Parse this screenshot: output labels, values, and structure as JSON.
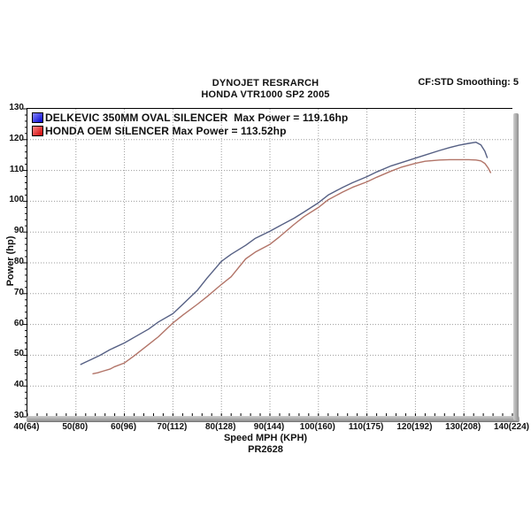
{
  "header": {
    "line1": "DYNOJET RESRARCH",
    "line2": "HONDA VTR1000 SP2 2005",
    "smoothing": "CF:STD Smoothing: 5"
  },
  "footer": {
    "run_id": "PR2628"
  },
  "colors": {
    "grid": "#9c9c9c",
    "axis_bar": "#a8a8a8",
    "tick": "#000000"
  },
  "chart_data": {
    "type": "line",
    "title": "DYNOJET RESRARCH",
    "subtitle": "HONDA VTR1000 SP2 2005",
    "annotation_top_right": "CF:STD Smoothing: 5",
    "xlabel": "Speed MPH (KPH)",
    "ylabel": "Power (hp)",
    "run_id": "PR2628",
    "xlim": [
      40,
      140
    ],
    "ylim": [
      30,
      130
    ],
    "grid": "dotted",
    "legend_position": "top-left",
    "x_ticks": [
      {
        "value": 40,
        "label": "40(64)"
      },
      {
        "value": 50,
        "label": "50(80)"
      },
      {
        "value": 60,
        "label": "60(96)"
      },
      {
        "value": 70,
        "label": "70(112)"
      },
      {
        "value": 80,
        "label": "80(128)"
      },
      {
        "value": 90,
        "label": "90(144)"
      },
      {
        "value": 100,
        "label": "100(160)"
      },
      {
        "value": 110,
        "label": "110(175)"
      },
      {
        "value": 120,
        "label": "120(192)"
      },
      {
        "value": 130,
        "label": "130(208)"
      },
      {
        "value": 140,
        "label": "140(224)"
      }
    ],
    "y_ticks": [
      30,
      40,
      50,
      60,
      70,
      80,
      90,
      100,
      110,
      120,
      130
    ],
    "minor_tick_step_x": 2,
    "minor_tick_step_y": 2,
    "series": [
      {
        "name": "DELKEVIC 350MM OVAL SILENCER",
        "max_power_hp": 119.16,
        "legend_text": "DELKEVIC 350MM OVAL SILENCER  Max Power = 119.16hp",
        "line_color": "#566084",
        "swatch_color_top": "#8888ff",
        "swatch_color_bottom": "#0000cc",
        "points": [
          [
            51,
            47
          ],
          [
            52,
            47.8
          ],
          [
            53,
            48.5
          ],
          [
            55,
            50
          ],
          [
            57,
            51.8
          ],
          [
            60,
            54
          ],
          [
            62,
            55.8
          ],
          [
            65,
            58.5
          ],
          [
            67,
            60.8
          ],
          [
            70,
            63.5
          ],
          [
            72,
            66.5
          ],
          [
            75,
            71
          ],
          [
            77,
            75
          ],
          [
            80,
            80.5
          ],
          [
            82,
            82.8
          ],
          [
            85,
            85.7
          ],
          [
            87,
            88
          ],
          [
            90,
            90.3
          ],
          [
            92,
            92
          ],
          [
            95,
            94.5
          ],
          [
            97,
            96.5
          ],
          [
            100,
            99.5
          ],
          [
            102,
            102
          ],
          [
            105,
            104.5
          ],
          [
            107,
            106
          ],
          [
            110,
            108
          ],
          [
            112,
            109.5
          ],
          [
            115,
            111.5
          ],
          [
            117,
            112.5
          ],
          [
            120,
            114
          ],
          [
            122,
            115
          ],
          [
            125,
            116.5
          ],
          [
            127,
            117.4
          ],
          [
            129,
            118.2
          ],
          [
            131,
            118.8
          ],
          [
            132.5,
            119.16
          ],
          [
            133.5,
            118.3
          ],
          [
            134.3,
            116.3
          ],
          [
            134.8,
            114.2
          ]
        ]
      },
      {
        "name": "HONDA OEM SILENCER",
        "max_power_hp": 113.52,
        "legend_text": "HONDA OEM SILENCER Max Power = 113.52hp",
        "line_color": "#b27468",
        "swatch_color_top": "#ff8888",
        "swatch_color_bottom": "#cc0000",
        "points": [
          [
            53.5,
            44
          ],
          [
            54.5,
            44.3
          ],
          [
            55.5,
            44.8
          ],
          [
            57,
            45.5
          ],
          [
            58,
            46.3
          ],
          [
            60,
            47.5
          ],
          [
            62,
            49.8
          ],
          [
            65,
            53.5
          ],
          [
            67,
            56
          ],
          [
            70,
            60.5
          ],
          [
            72,
            63
          ],
          [
            75,
            66.5
          ],
          [
            77,
            69
          ],
          [
            80,
            73
          ],
          [
            82,
            75.5
          ],
          [
            85,
            81.3
          ],
          [
            87,
            83.5
          ],
          [
            90,
            86
          ],
          [
            92,
            88.5
          ],
          [
            95,
            92.5
          ],
          [
            97,
            95
          ],
          [
            100,
            98
          ],
          [
            102,
            100.5
          ],
          [
            105,
            103
          ],
          [
            107,
            104.5
          ],
          [
            110,
            106.3
          ],
          [
            112,
            107.8
          ],
          [
            115,
            109.8
          ],
          [
            117,
            111
          ],
          [
            120,
            112.3
          ],
          [
            122,
            113
          ],
          [
            125,
            113.4
          ],
          [
            127,
            113.52
          ],
          [
            129,
            113.5
          ],
          [
            131,
            113.5
          ],
          [
            132.5,
            113.4
          ],
          [
            133.5,
            113.1
          ],
          [
            134.3,
            112.3
          ],
          [
            135,
            110.8
          ],
          [
            135.5,
            109.3
          ]
        ]
      }
    ]
  }
}
